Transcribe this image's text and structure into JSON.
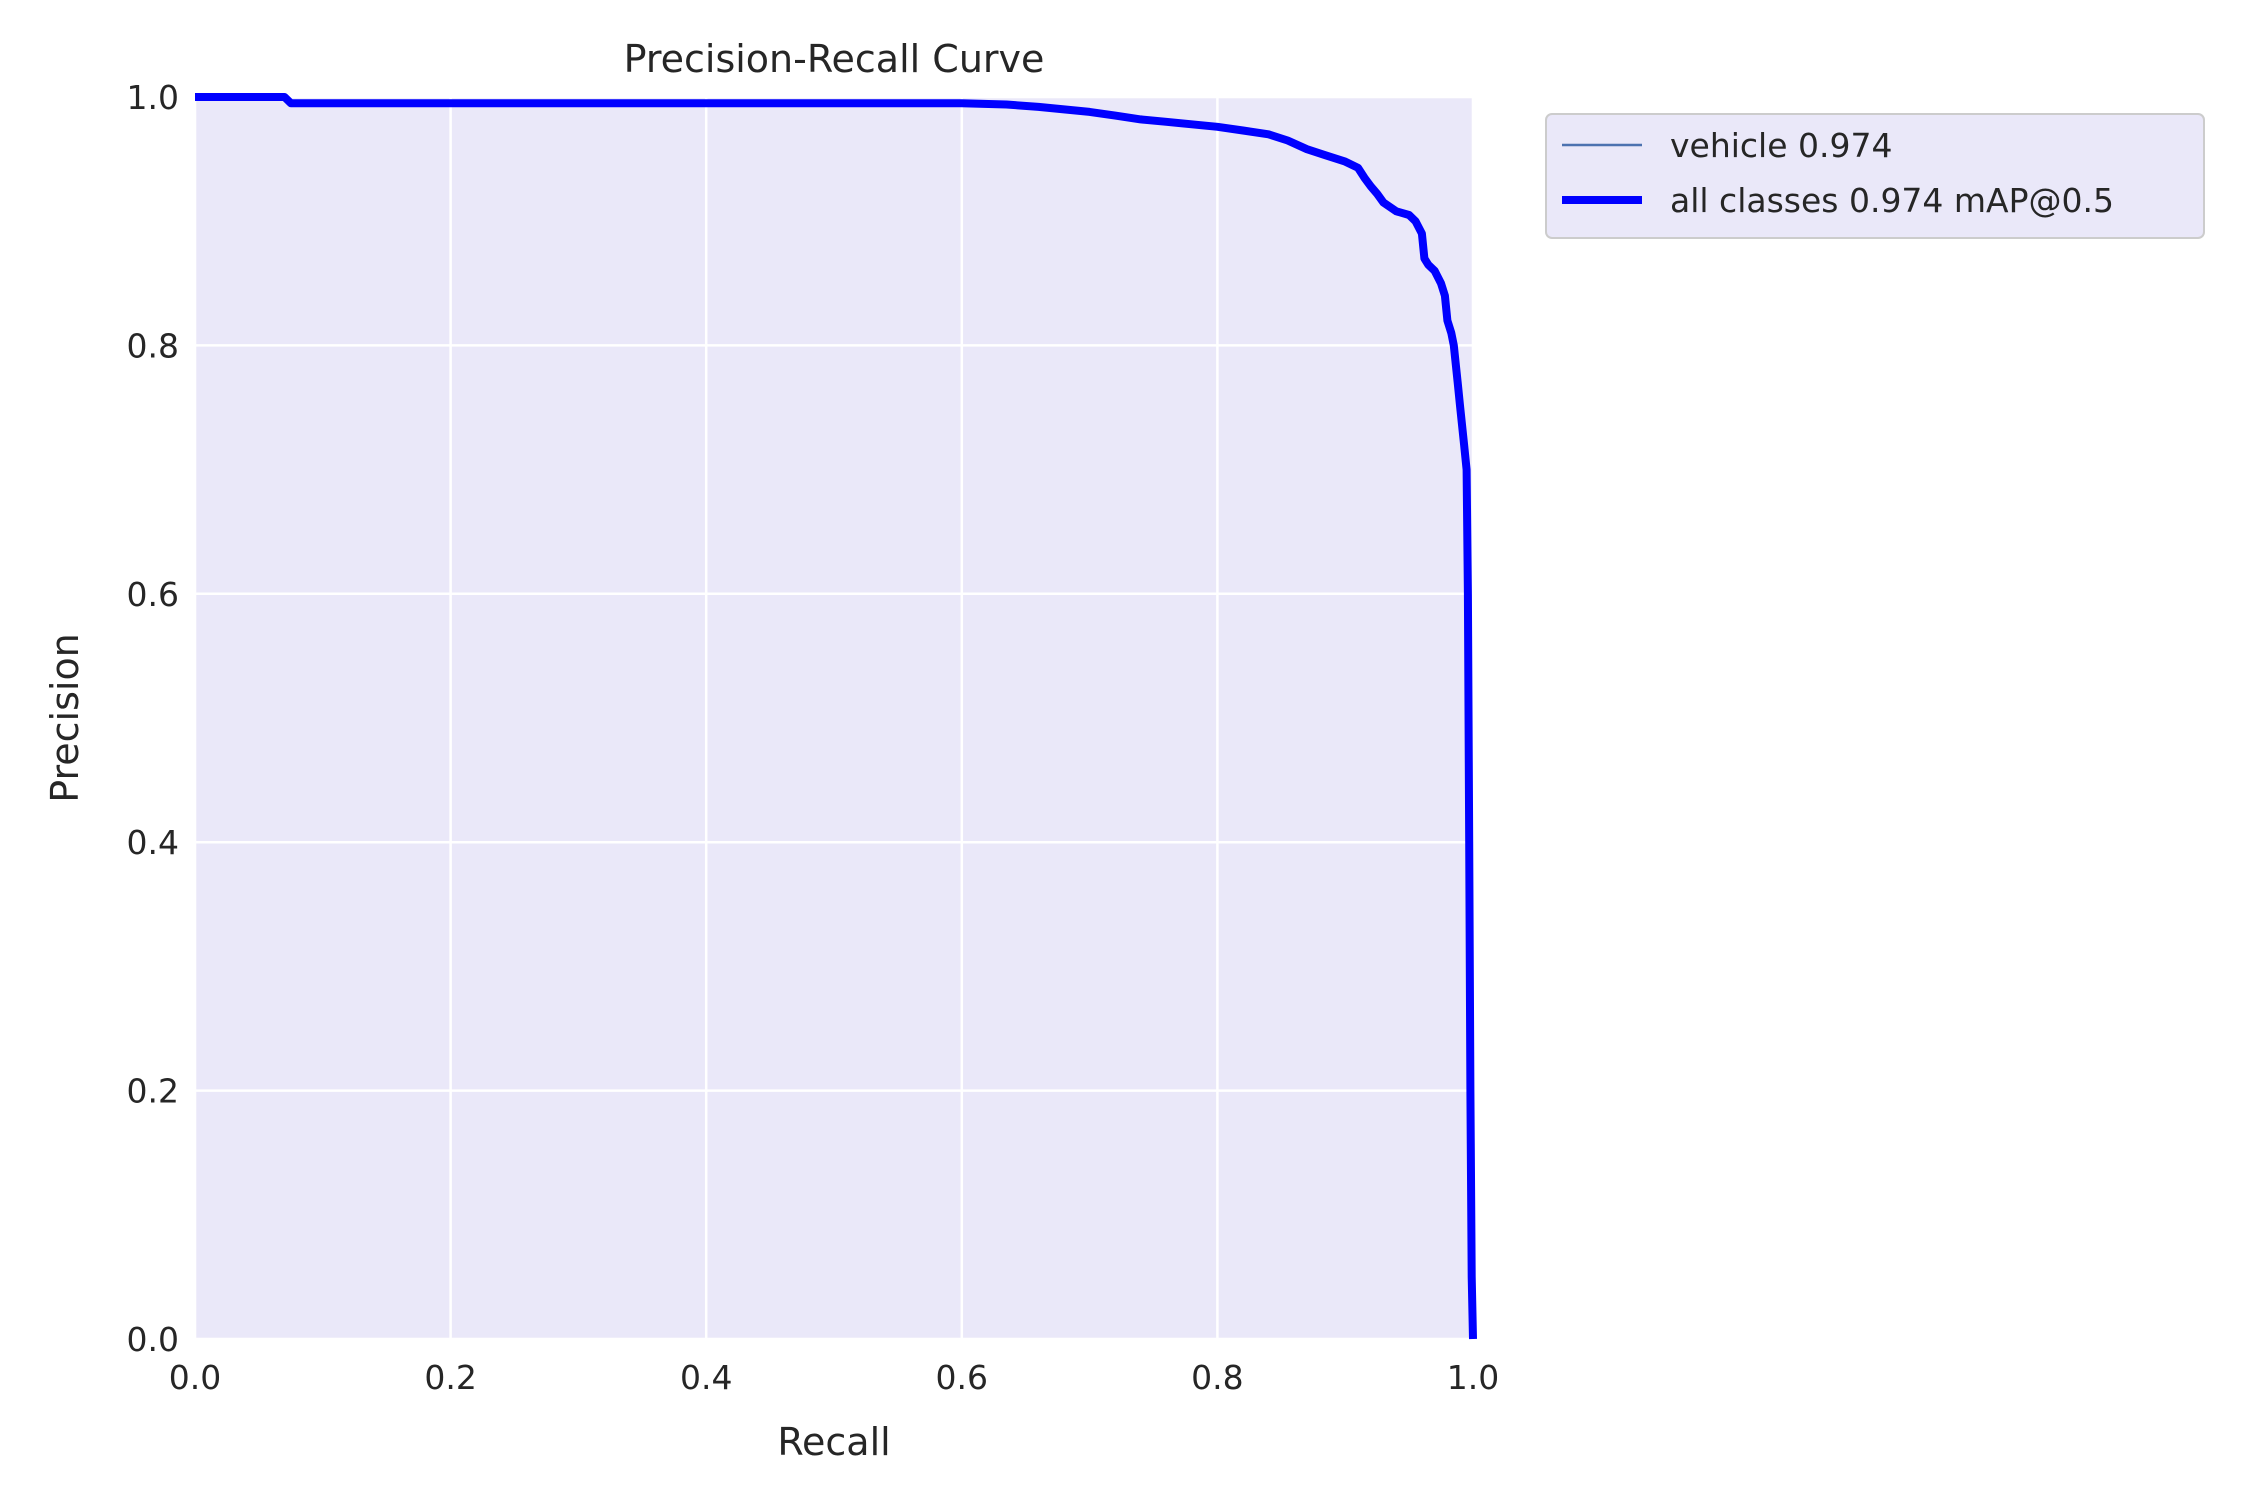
{
  "chart_data": {
    "type": "line",
    "title": "Precision-Recall Curve",
    "xlabel": "Recall",
    "ylabel": "Precision",
    "xlim": [
      0.0,
      1.0
    ],
    "ylim": [
      0.0,
      1.0
    ],
    "x_ticks": [
      "0.0",
      "0.2",
      "0.4",
      "0.6",
      "0.8",
      "1.0"
    ],
    "y_ticks": [
      "0.0",
      "0.2",
      "0.4",
      "0.6",
      "0.8",
      "1.0"
    ],
    "grid": true,
    "legend_position": "outside-top-right",
    "background_color": "#eae8f9",
    "series": [
      {
        "name": "vehicle 0.974",
        "color": "#4c72b0",
        "style": "thin",
        "x": [
          0.0,
          0.07,
          0.075,
          0.2,
          0.4,
          0.6,
          0.635,
          0.66,
          0.68,
          0.7,
          0.72,
          0.74,
          0.76,
          0.78,
          0.8,
          0.82,
          0.84,
          0.855,
          0.87,
          0.885,
          0.9,
          0.91,
          0.915,
          0.92,
          0.925,
          0.93,
          0.94,
          0.95,
          0.955,
          0.96,
          0.962,
          0.965,
          0.97,
          0.975,
          0.978,
          0.98,
          0.983,
          0.985,
          0.988,
          0.99,
          0.993,
          0.995,
          0.996,
          0.997,
          0.998,
          0.999,
          1.0
        ],
        "y": [
          1.0,
          1.0,
          0.995,
          0.995,
          0.995,
          0.995,
          0.994,
          0.992,
          0.99,
          0.988,
          0.985,
          0.982,
          0.98,
          0.978,
          0.976,
          0.973,
          0.97,
          0.965,
          0.958,
          0.953,
          0.948,
          0.943,
          0.935,
          0.928,
          0.922,
          0.915,
          0.908,
          0.905,
          0.9,
          0.89,
          0.87,
          0.865,
          0.86,
          0.85,
          0.84,
          0.82,
          0.81,
          0.8,
          0.77,
          0.75,
          0.72,
          0.7,
          0.6,
          0.4,
          0.2,
          0.05,
          0.0
        ]
      },
      {
        "name": "all classes 0.974 mAP@0.5",
        "color": "#0000ff",
        "style": "thick",
        "x": [
          0.0,
          0.07,
          0.075,
          0.2,
          0.4,
          0.6,
          0.635,
          0.66,
          0.68,
          0.7,
          0.72,
          0.74,
          0.76,
          0.78,
          0.8,
          0.82,
          0.84,
          0.855,
          0.87,
          0.885,
          0.9,
          0.91,
          0.915,
          0.92,
          0.925,
          0.93,
          0.94,
          0.95,
          0.955,
          0.96,
          0.962,
          0.965,
          0.97,
          0.975,
          0.978,
          0.98,
          0.983,
          0.985,
          0.988,
          0.99,
          0.993,
          0.995,
          0.996,
          0.997,
          0.998,
          0.999,
          1.0
        ],
        "y": [
          1.0,
          1.0,
          0.995,
          0.995,
          0.995,
          0.995,
          0.994,
          0.992,
          0.99,
          0.988,
          0.985,
          0.982,
          0.98,
          0.978,
          0.976,
          0.973,
          0.97,
          0.965,
          0.958,
          0.953,
          0.948,
          0.943,
          0.935,
          0.928,
          0.922,
          0.915,
          0.908,
          0.905,
          0.9,
          0.89,
          0.87,
          0.865,
          0.86,
          0.85,
          0.84,
          0.82,
          0.81,
          0.8,
          0.77,
          0.75,
          0.72,
          0.7,
          0.6,
          0.4,
          0.2,
          0.05,
          0.0
        ]
      }
    ]
  }
}
